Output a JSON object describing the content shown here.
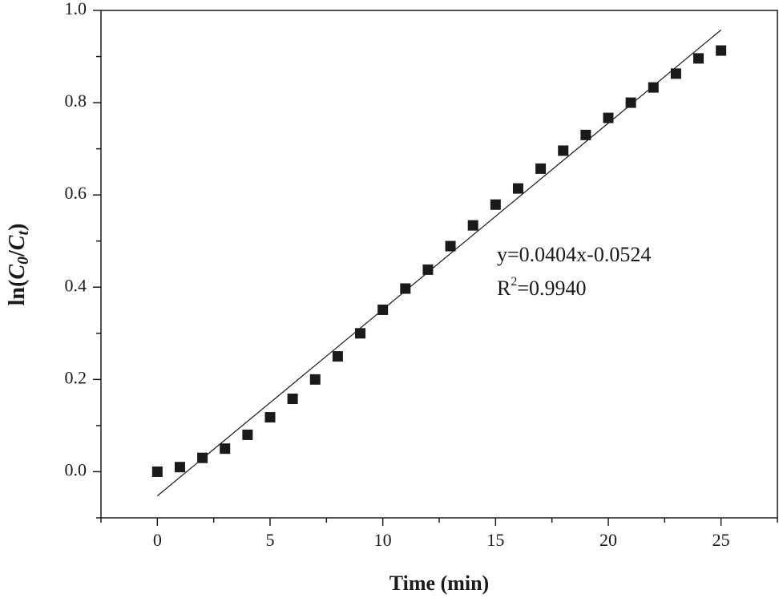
{
  "chart_data": {
    "type": "scatter",
    "xlabel": "Time (min)",
    "ylabel": {
      "prefix": "ln(",
      "numerator": "C",
      "numerator_sub": "0",
      "slash": "/",
      "denominator": "C",
      "denominator_sub": "t",
      "suffix": ")"
    },
    "annotation": {
      "equation": "y=0.0404x-0.0524",
      "r2": {
        "symbol": "R",
        "superscript": "2",
        "value": "=0.9940"
      }
    },
    "x": [
      0,
      1,
      2,
      3,
      4,
      5,
      6,
      7,
      8,
      9,
      10,
      11,
      12,
      13,
      14,
      15,
      16,
      17,
      18,
      19,
      20,
      21,
      22,
      23,
      24,
      25
    ],
    "series": [
      {
        "type": "scatter",
        "color": "#1a1a1a",
        "values": [
          0,
          0.01,
          0.03,
          0.05,
          0.08,
          0.118,
          0.158,
          0.2,
          0.25,
          0.3,
          0.351,
          0.397,
          0.438,
          0.489,
          0.534,
          0.579,
          0.614,
          0.657,
          0.696,
          0.73,
          0.767,
          0.8,
          0.833,
          0.863,
          0.896,
          0.913
        ]
      },
      {
        "type": "line",
        "color": "#1a1a1a",
        "x": [
          0,
          25
        ],
        "values": [
          -0.0524,
          0.9576
        ]
      }
    ],
    "xlim": [
      -2.5,
      27.5
    ],
    "ylim": [
      -0.1,
      1.0
    ],
    "xticks": [
      0,
      5,
      10,
      15,
      20,
      25
    ],
    "xminorticks": [
      -2.5,
      2.5,
      7.5,
      12.5,
      17.5,
      22.5,
      27.5
    ],
    "yticks": [
      {
        "value": 0,
        "label": "0.0"
      },
      0.2,
      0.4,
      0.6,
      0.8,
      {
        "value": 1,
        "label": "1.0"
      }
    ],
    "yminorticks": [
      -0.1,
      0.1,
      0.3,
      0.5,
      0.7,
      0.9
    ]
  }
}
